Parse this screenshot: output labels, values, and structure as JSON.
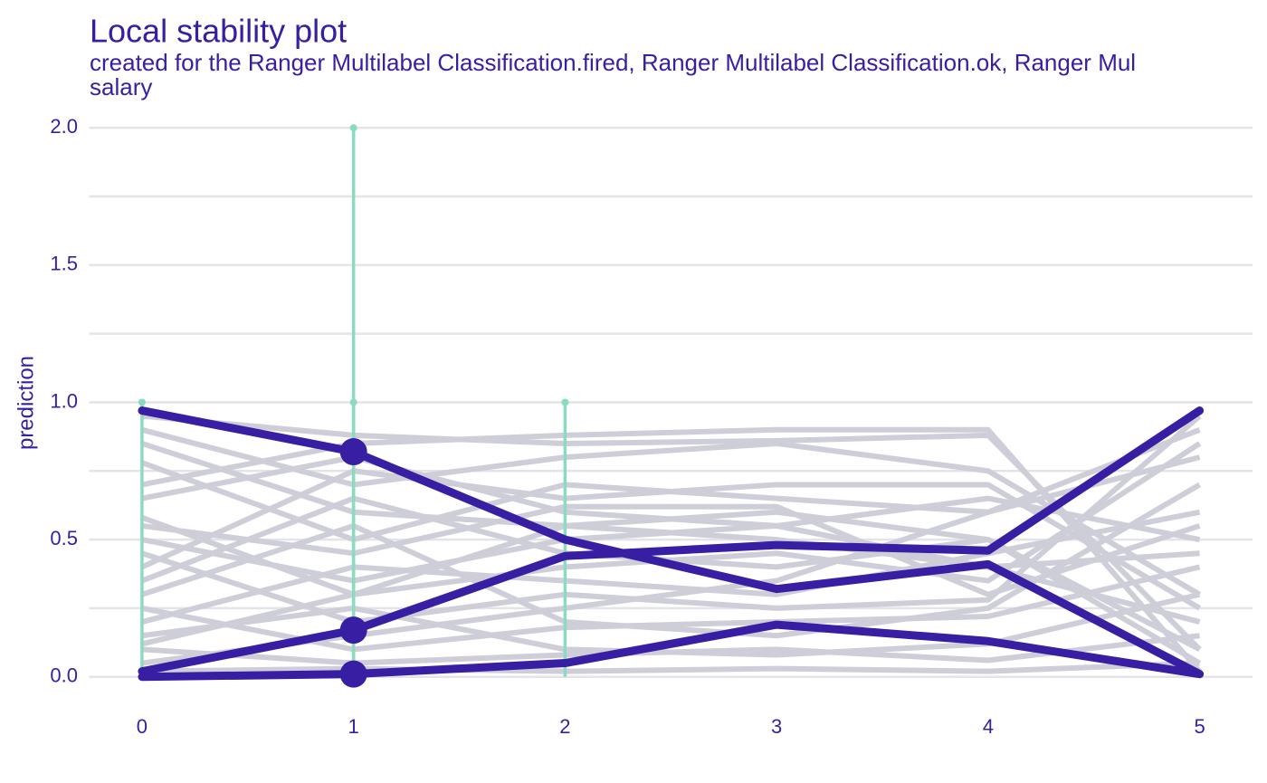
{
  "chart_data": {
    "type": "line",
    "title": "Local stability plot",
    "subtitle": [
      "created for the Ranger Multilabel Classification.fired, Ranger Multilabel Classification.ok, Ranger Mul",
      "salary"
    ],
    "y_label": "prediction",
    "x": [
      0,
      1,
      2,
      3,
      4,
      5
    ],
    "xlim": [
      -0.25,
      5.25
    ],
    "xticks": [
      0,
      1,
      2,
      3,
      4,
      5
    ],
    "ylim": [
      -0.09,
      2.07
    ],
    "yticks": [
      {
        "value": 0,
        "label": "0.0"
      },
      {
        "value": 0.5,
        "label": "0.5"
      },
      {
        "value": 1,
        "label": "1.0"
      },
      {
        "value": 1.5,
        "label": "1.5"
      },
      {
        "value": 2,
        "label": "2.0"
      }
    ],
    "grid": true,
    "background_series": {
      "color": "#ceced9",
      "lines": [
        [
          0.95,
          0.88,
          0.85,
          0.86,
          0.88,
          0.1
        ],
        [
          0.9,
          0.7,
          0.8,
          0.85,
          0.75,
          0.3
        ],
        [
          0.85,
          0.6,
          0.55,
          0.6,
          0.5,
          0.05
        ],
        [
          0.78,
          0.5,
          0.7,
          0.65,
          0.6,
          0.9
        ],
        [
          0.65,
          0.8,
          0.6,
          0.55,
          0.4,
          0.2
        ],
        [
          0.58,
          0.3,
          0.4,
          0.45,
          0.35,
          0.85
        ],
        [
          0.55,
          0.45,
          0.62,
          0.62,
          0.3,
          0.55
        ],
        [
          0.45,
          0.2,
          0.3,
          0.25,
          0.28,
          0.95
        ],
        [
          0.35,
          0.65,
          0.45,
          0.4,
          0.5,
          0.1
        ],
        [
          0.3,
          0.55,
          0.2,
          0.15,
          0.25,
          0.7
        ],
        [
          0.25,
          0.1,
          0.18,
          0.2,
          0.22,
          0.4
        ],
        [
          0.2,
          0.4,
          0.35,
          0.3,
          0.45,
          0.6
        ],
        [
          0.15,
          0.25,
          0.1,
          0.08,
          0.12,
          0.3
        ],
        [
          0.1,
          0.05,
          0.08,
          0.1,
          0.06,
          0.15
        ],
        [
          0.05,
          0.15,
          0.25,
          0.35,
          0.6,
          0.8
        ],
        [
          0.02,
          0.03,
          0.02,
          0.03,
          0.02,
          0.05
        ],
        [
          0.7,
          0.85,
          0.88,
          0.9,
          0.9,
          0.02
        ],
        [
          0.5,
          0.35,
          0.5,
          0.55,
          0.65,
          0.5
        ],
        [
          0.4,
          0.75,
          0.65,
          0.7,
          0.7,
          0.25
        ],
        [
          0.12,
          0.3,
          0.55,
          0.5,
          0.4,
          0.45
        ]
      ]
    },
    "residuals": {
      "color": "#8bdcbe",
      "segments": [
        {
          "x": 0,
          "from": 0,
          "to": 1
        },
        {
          "x": 1,
          "from": 0,
          "to": 2
        },
        {
          "x": 1,
          "from": 0,
          "to": 1
        },
        {
          "x": 2,
          "from": 0,
          "to": 1
        }
      ]
    },
    "series": [
      {
        "color": "#371ea3",
        "values": [
          0.97,
          0.82,
          0.5,
          0.32,
          0.41,
          0.01
        ]
      },
      {
        "color": "#371ea3",
        "values": [
          0.02,
          0.17,
          0.44,
          0.48,
          0.46,
          0.97
        ]
      },
      {
        "color": "#371ea3",
        "values": [
          0.0,
          0.01,
          0.05,
          0.19,
          0.13,
          0.01
        ]
      }
    ],
    "observation_x": 1
  }
}
